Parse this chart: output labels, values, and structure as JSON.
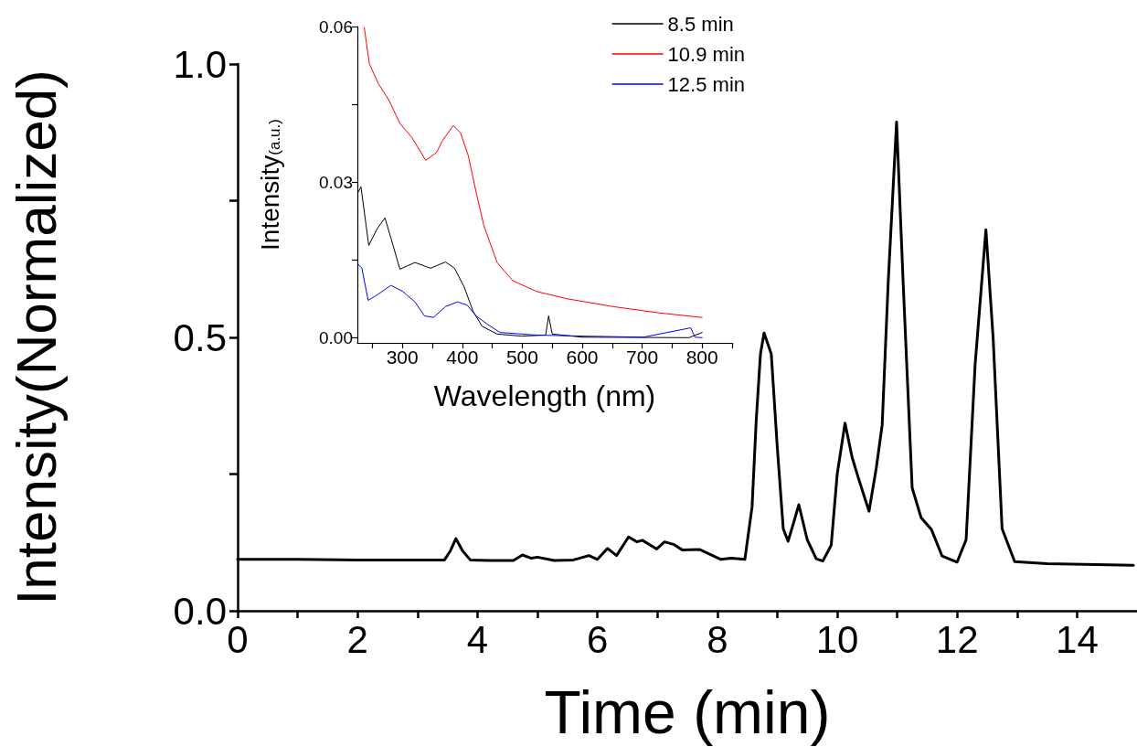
{
  "chart_data": [
    {
      "type": "line",
      "xlabel": "Time (min)",
      "ylabel": "Intensity(Normalized)",
      "xlim": [
        0,
        15
      ],
      "ylim": [
        0,
        1.0
      ],
      "xticks": [
        0,
        {
          "value": 1,
          "label": null
        },
        2,
        {
          "value": 3,
          "label": null
        },
        4,
        {
          "value": 5,
          "label": null
        },
        6,
        {
          "value": 7,
          "label": null
        },
        8,
        {
          "value": 9,
          "label": null
        },
        10,
        {
          "value": 11,
          "label": null
        },
        12,
        {
          "value": 13,
          "label": null
        },
        14
      ],
      "yticks": [
        {
          "value": 0,
          "label": "0.0"
        },
        {
          "value": 0.25,
          "label": null
        },
        {
          "value": 0.5,
          "label": "0.5"
        },
        {
          "value": 0.75,
          "label": null
        },
        {
          "value": 1.0,
          "label": "1.0"
        }
      ],
      "grid": false,
      "legend": false,
      "marker": "none",
      "line_style": "solid",
      "series": [
        {
          "color": "#000000",
          "x": [
            0,
            1,
            2,
            3,
            3.45,
            3.55,
            3.64,
            3.75,
            3.88,
            4.2,
            4.6,
            4.75,
            4.9,
            5.0,
            5.28,
            5.6,
            5.86,
            6.0,
            6.17,
            6.32,
            6.52,
            6.66,
            6.75,
            6.99,
            7.12,
            7.28,
            7.42,
            7.71,
            8.06,
            8.23,
            8.46,
            8.58,
            8.65,
            8.72,
            8.78,
            8.9,
            9.0,
            9.1,
            9.18,
            9.27,
            9.36,
            9.5,
            9.65,
            9.76,
            9.9,
            10.0,
            10.13,
            10.25,
            10.35,
            10.53,
            10.65,
            10.75,
            10.85,
            10.99,
            11.1,
            11.25,
            11.4,
            11.57,
            11.75,
            12.0,
            12.15,
            12.3,
            12.48,
            12.6,
            12.75,
            12.96,
            13.5,
            14.94
          ],
          "values": [
            0.094,
            0.094,
            0.093,
            0.093,
            0.093,
            0.11,
            0.132,
            0.11,
            0.093,
            0.092,
            0.092,
            0.102,
            0.096,
            0.098,
            0.092,
            0.093,
            0.101,
            0.094,
            0.114,
            0.101,
            0.135,
            0.126,
            0.129,
            0.113,
            0.126,
            0.121,
            0.111,
            0.112,
            0.094,
            0.096,
            0.094,
            0.19,
            0.35,
            0.47,
            0.508,
            0.47,
            0.3,
            0.15,
            0.127,
            0.16,
            0.194,
            0.13,
            0.095,
            0.091,
            0.12,
            0.25,
            0.343,
            0.28,
            0.244,
            0.182,
            0.26,
            0.34,
            0.6,
            0.894,
            0.6,
            0.225,
            0.17,
            0.149,
            0.1,
            0.089,
            0.13,
            0.45,
            0.697,
            0.5,
            0.15,
            0.09,
            0.086,
            0.083
          ]
        }
      ]
    },
    {
      "type": "line",
      "xlabel": "Wavelength (nm)",
      "ylabel": "Intensity$_{(a.u.)}$",
      "xlim": [
        225,
        850
      ],
      "ylim": [
        -0.001,
        0.06
      ],
      "xticks": [
        {
          "value": 250,
          "label": null
        },
        300,
        {
          "value": 350,
          "label": null
        },
        400,
        {
          "value": 450,
          "label": null
        },
        500,
        {
          "value": 550,
          "label": null
        },
        600,
        {
          "value": 650,
          "label": null
        },
        700,
        {
          "value": 750,
          "label": null
        },
        800,
        {
          "value": 850,
          "label": null
        }
      ],
      "yticks": [
        {
          "value": 0,
          "label": "0.00"
        },
        {
          "value": 0.015,
          "label": null
        },
        {
          "value": 0.03,
          "label": "0.03"
        },
        {
          "value": 0.045,
          "label": null
        },
        {
          "value": 0.06,
          "label": "0.06"
        }
      ],
      "grid": false,
      "legend": "top right",
      "marker": "none",
      "line_style": "solid",
      "series": [
        {
          "name": "8.5 min",
          "color": "#000000",
          "x": [
            226,
            231,
            244,
            258,
            271,
            281,
            296,
            321,
            347,
            372,
            387,
            403,
            418,
            433,
            458,
            499,
            539,
            544,
            550,
            600,
            778,
            800
          ],
          "values": [
            0.028,
            0.0291,
            0.0178,
            0.021,
            0.0231,
            0.0192,
            0.0132,
            0.0145,
            0.0134,
            0.0146,
            0.0134,
            0.0098,
            0.0051,
            0.0022,
            0.0007,
            0.0003,
            0.0005,
            0.0042,
            0.0007,
            0.0001,
            0,
            0.001
          ]
        },
        {
          "name": "10.9 min",
          "color": "#ff0000",
          "x": [
            236.5,
            245,
            260,
            278,
            296,
            316,
            339,
            357,
            367,
            385,
            397,
            410,
            423,
            436,
            458,
            484,
            524,
            575,
            651,
            727,
            800
          ],
          "values": [
            0.0598,
            0.0528,
            0.049,
            0.0457,
            0.0413,
            0.0386,
            0.0342,
            0.0357,
            0.038,
            0.0409,
            0.0395,
            0.0351,
            0.0281,
            0.0216,
            0.0145,
            0.011,
            0.0089,
            0.0075,
            0.006,
            0.0048,
            0.0039
          ]
        },
        {
          "name": "12.5 min",
          "color": "#0000ff",
          "x": [
            226,
            232.5,
            243,
            260,
            281,
            301,
            321,
            337,
            352,
            372,
            392,
            408,
            423,
            443,
            463,
            524,
            600,
            702,
            781,
            788,
            800
          ],
          "values": [
            0.0142,
            0.0134,
            0.0072,
            0.0084,
            0.0101,
            0.0089,
            0.0069,
            0.0042,
            0.0039,
            0.006,
            0.0069,
            0.0063,
            0.0042,
            0.0025,
            0.001,
            0.0005,
            0.0003,
            0.0001,
            0.0019,
            0.0001,
            0
          ]
        }
      ]
    }
  ]
}
